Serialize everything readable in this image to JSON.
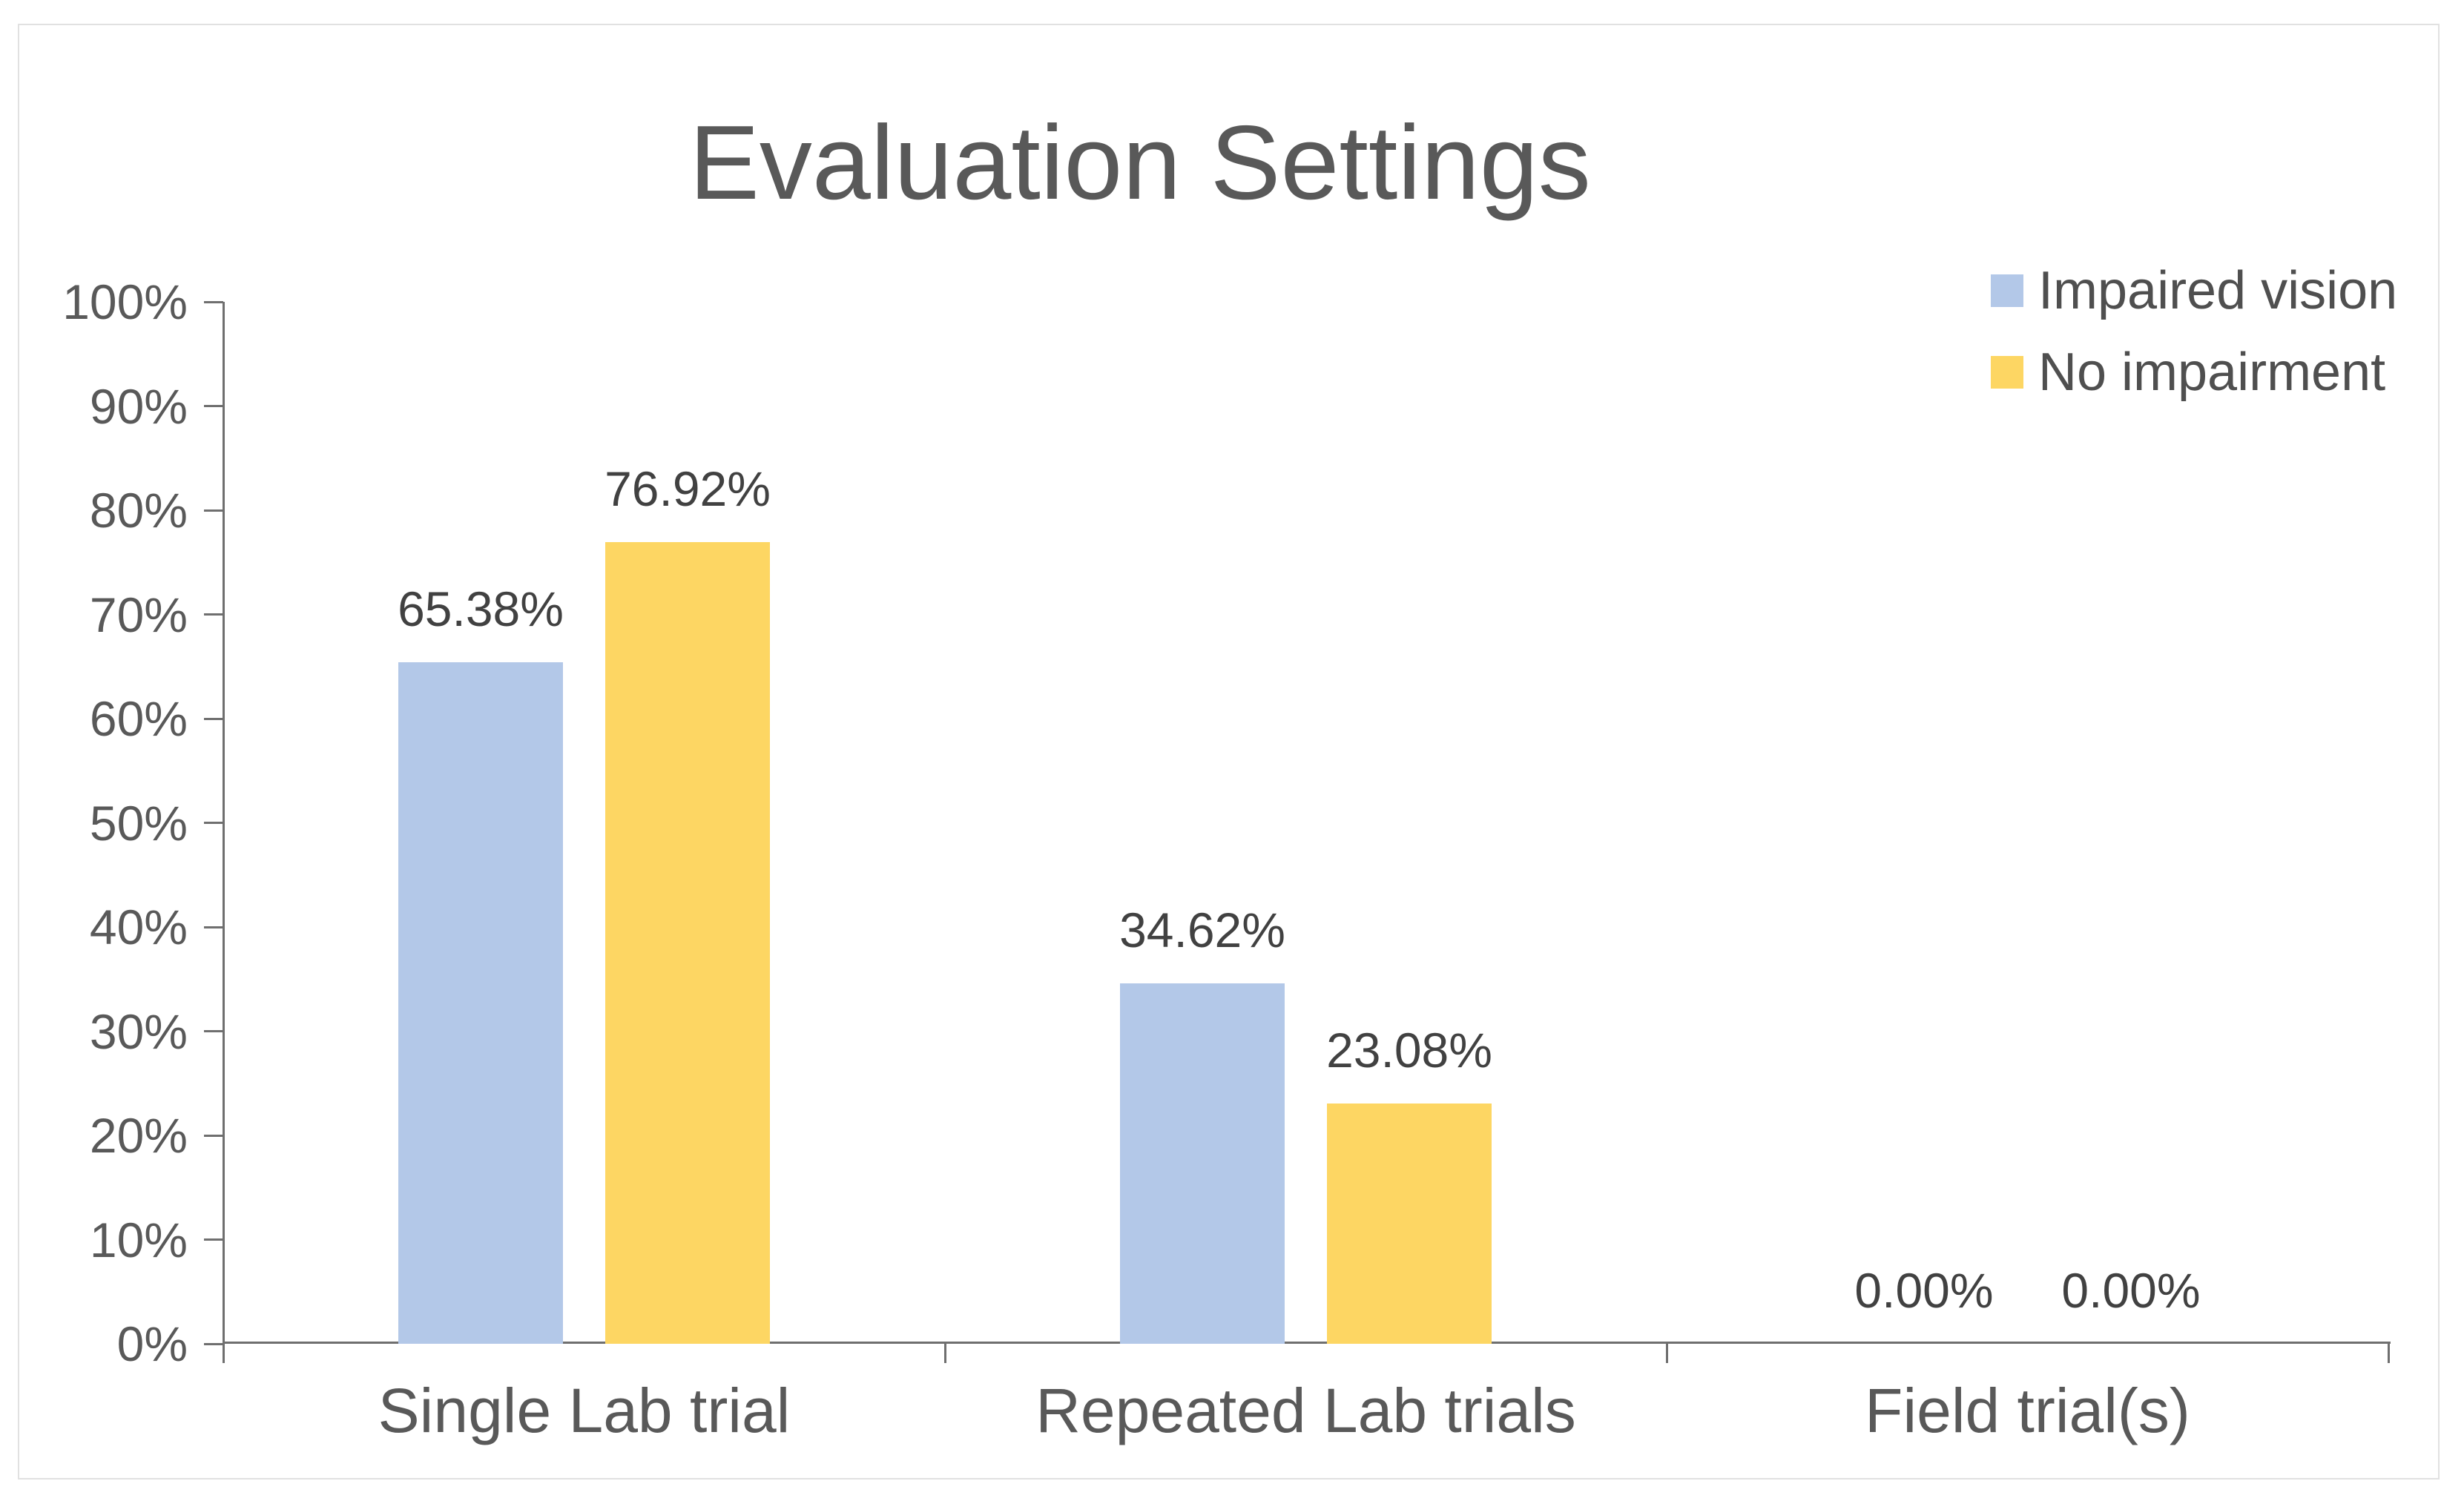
{
  "chart_data": {
    "type": "bar",
    "title": "Evaluation Settings",
    "categories": [
      "Single Lab trial",
      "Repeated Lab trials",
      "Field trial(s)"
    ],
    "series": [
      {
        "name": "Impaired vision",
        "color": "#B3C8E8",
        "values": [
          65.38,
          34.62,
          0
        ],
        "data_labels": [
          "65.38%",
          "34.62%",
          "0.00%"
        ]
      },
      {
        "name": "No impairment",
        "color": "#FDD663",
        "values": [
          76.92,
          23.08,
          0
        ],
        "data_labels": [
          "76.92%",
          "23.08%",
          "0.00%"
        ]
      }
    ],
    "y_axis": {
      "min": 0,
      "max": 100,
      "step": 10,
      "tick_labels": [
        "0%",
        "10%",
        "20%",
        "30%",
        "40%",
        "50%",
        "60%",
        "70%",
        "80%",
        "90%",
        "100%"
      ]
    },
    "legend_position": "top-right",
    "grid": false
  },
  "colors": {
    "series_impaired_vision": "#B3C8E8",
    "series_no_impairment": "#FDD663",
    "axis_line": "#6F6F6F",
    "title_text": "#595959",
    "axis_label_text": "#595959",
    "data_label_text": "#414141",
    "card_border": "#E1E1E1"
  }
}
